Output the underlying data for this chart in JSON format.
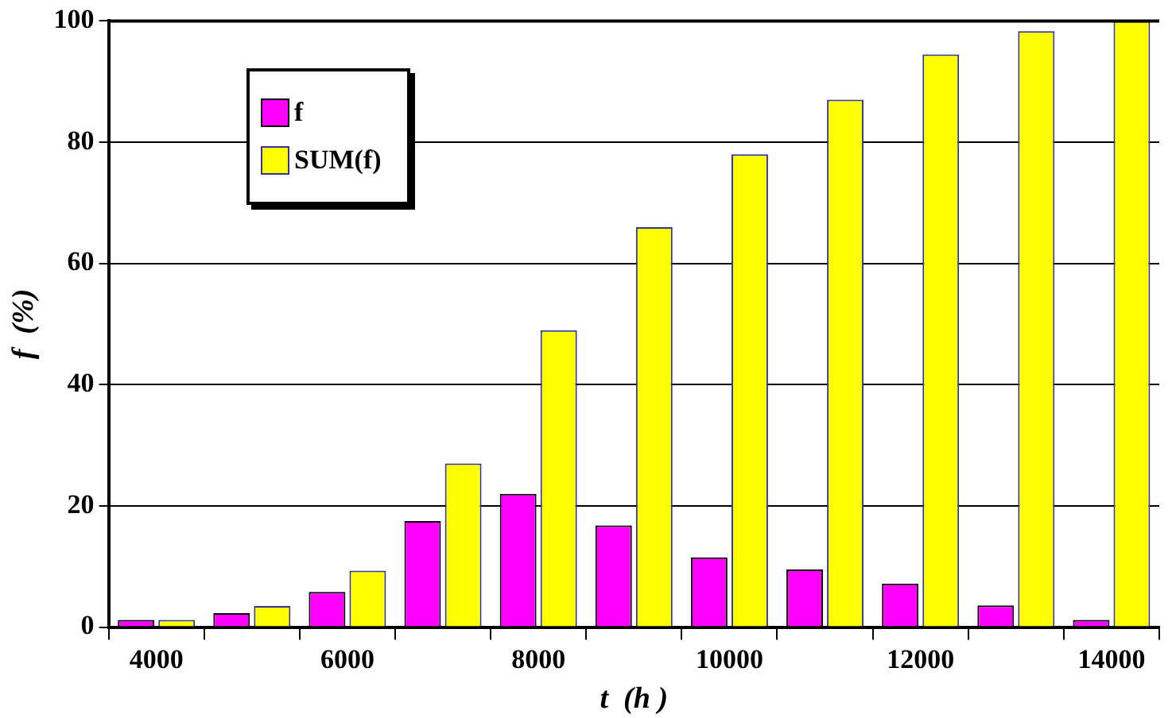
{
  "chart_data": {
    "type": "bar",
    "xlabel": "t  (h )",
    "ylabel": "f  (%)",
    "categories": [
      "4000",
      null,
      "6000",
      null,
      "8000",
      null,
      "10000",
      null,
      "12000",
      null,
      "14000"
    ],
    "series": [
      {
        "name": "f",
        "color": "#ff00ff",
        "values": [
          1.2,
          2.3,
          5.8,
          17.5,
          22,
          16.8,
          11.5,
          9.5,
          7.2,
          3.6,
          1.2
        ]
      },
      {
        "name": "SUM(f)",
        "color": "#ffff00",
        "values": [
          1.2,
          3.5,
          9.3,
          27,
          49,
          66,
          78,
          87,
          94.5,
          98.3,
          100
        ]
      }
    ],
    "ylim": [
      0,
      100
    ],
    "yticks": [
      0,
      20,
      40,
      60,
      80,
      100
    ],
    "grid": "y",
    "legend": "top left"
  }
}
